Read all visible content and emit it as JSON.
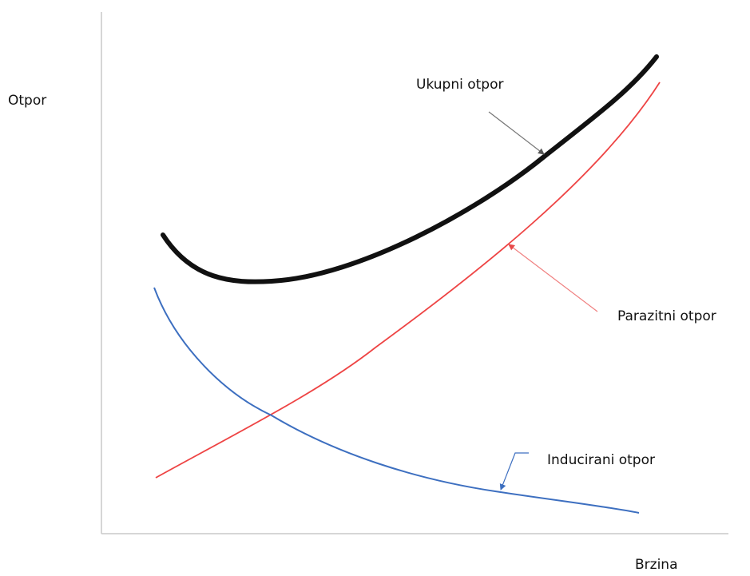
{
  "y_axis_label": "Otpor",
  "x_axis_label": "Brzina",
  "curves": [
    {
      "label": "Ukupni otpor"
    },
    {
      "label": "Parazitni otpor"
    },
    {
      "label": "Inducirani otpor"
    }
  ]
}
